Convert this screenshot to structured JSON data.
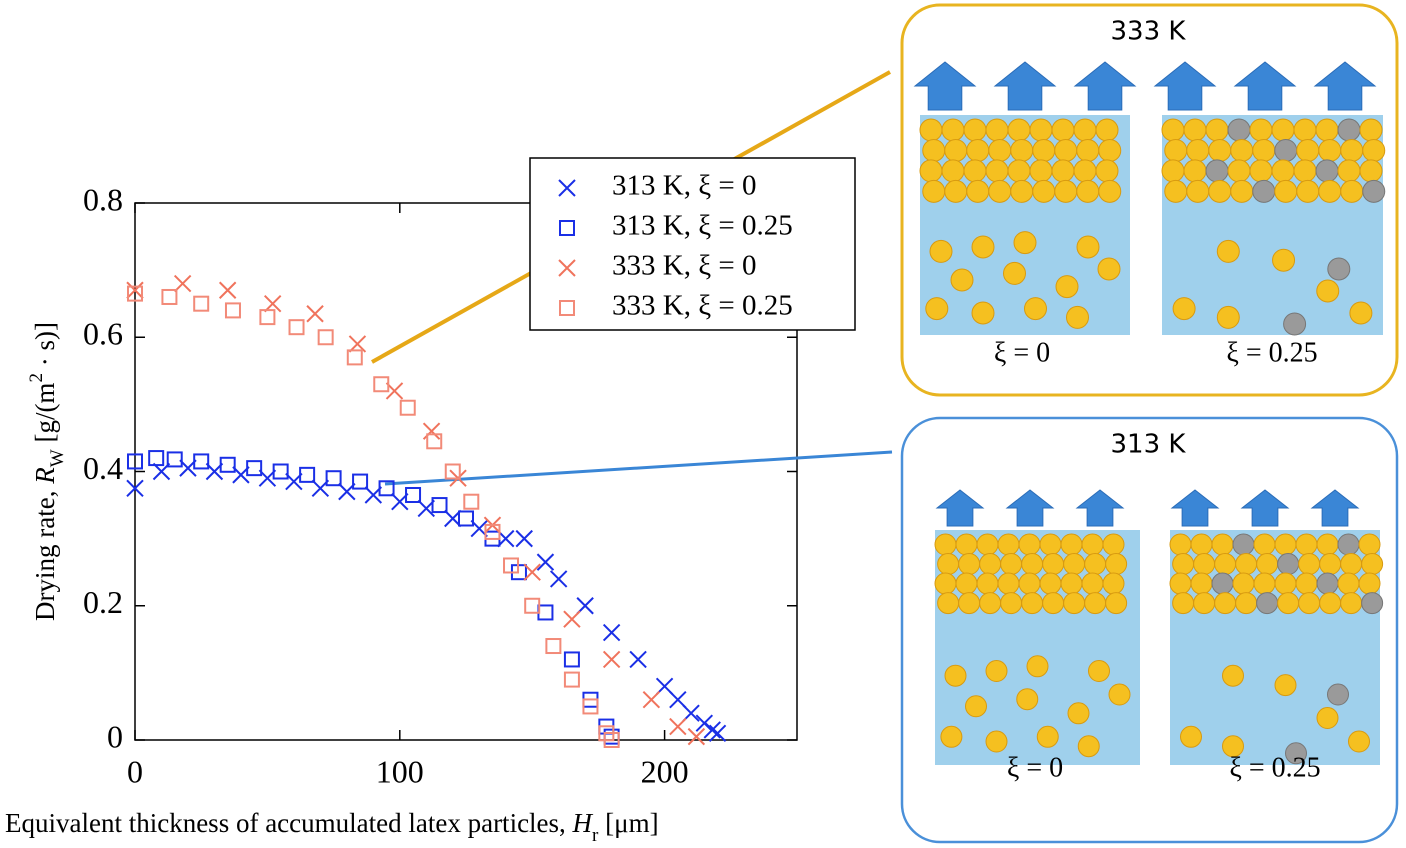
{
  "chart_data": {
    "type": "scatter",
    "ylabel_parts": [
      "Drying rate, ",
      "R",
      "W",
      " [g/(m",
      "2",
      " · s)]"
    ],
    "xlabel_parts": [
      "Equivalent thickness of accumulated latex particles, ",
      "H",
      "r",
      " [μm]"
    ],
    "xlim": [
      0,
      250
    ],
    "xticks": [
      0,
      100,
      200
    ],
    "ylim": [
      0,
      0.8
    ],
    "yticks": [
      0,
      0.2,
      0.4,
      0.6,
      0.8
    ],
    "legend": "upper right",
    "series": [
      {
        "name": "313 K, ξ = 0",
        "color": "#1a2fe6",
        "marker": "x",
        "x": [
          0,
          10,
          20,
          30,
          40,
          50,
          60,
          70,
          80,
          90,
          100,
          110,
          120,
          130,
          140,
          147,
          155,
          160,
          170,
          180,
          190,
          200,
          205,
          210,
          215,
          218,
          220
        ],
        "values": [
          0.375,
          0.4,
          0.405,
          0.4,
          0.395,
          0.39,
          0.385,
          0.375,
          0.37,
          0.365,
          0.355,
          0.345,
          0.33,
          0.315,
          0.3,
          0.3,
          0.265,
          0.24,
          0.2,
          0.16,
          0.12,
          0.08,
          0.06,
          0.04,
          0.025,
          0.015,
          0.01
        ]
      },
      {
        "name": "313 K, ξ = 0.25",
        "color": "#1a2fe6",
        "marker": "square",
        "x": [
          0,
          8,
          15,
          25,
          35,
          45,
          55,
          65,
          75,
          85,
          95,
          105,
          115,
          125,
          135,
          145,
          155,
          165,
          172,
          178,
          180
        ],
        "values": [
          0.415,
          0.42,
          0.418,
          0.415,
          0.41,
          0.405,
          0.4,
          0.395,
          0.39,
          0.385,
          0.375,
          0.365,
          0.35,
          0.33,
          0.3,
          0.25,
          0.19,
          0.12,
          0.06,
          0.02,
          0.005
        ]
      },
      {
        "name": "333 K, ξ = 0",
        "color": "#f0735c",
        "marker": "x",
        "x": [
          0,
          18,
          35,
          52,
          68,
          84,
          98,
          112,
          122,
          135,
          150,
          165,
          180,
          195,
          205,
          212
        ],
        "values": [
          0.67,
          0.68,
          0.67,
          0.65,
          0.635,
          0.59,
          0.52,
          0.46,
          0.39,
          0.32,
          0.25,
          0.18,
          0.12,
          0.06,
          0.02,
          0.005
        ]
      },
      {
        "name": "333 K, ξ = 0.25",
        "color": "#f28a78",
        "marker": "square",
        "x": [
          0,
          13,
          25,
          37,
          50,
          61,
          72,
          83,
          93,
          103,
          113,
          120,
          127,
          135,
          142,
          150,
          158,
          165,
          172,
          178,
          180
        ],
        "values": [
          0.665,
          0.66,
          0.65,
          0.64,
          0.63,
          0.615,
          0.6,
          0.57,
          0.53,
          0.495,
          0.445,
          0.4,
          0.355,
          0.31,
          0.26,
          0.2,
          0.14,
          0.09,
          0.05,
          0.01,
          0.0
        ]
      }
    ]
  },
  "panels": [
    {
      "title": "333 K",
      "labels": [
        "ξ = 0",
        "ξ = 0.25"
      ]
    },
    {
      "title": "313 K",
      "labels": [
        "ξ = 0",
        "ξ = 0.25"
      ]
    }
  ]
}
